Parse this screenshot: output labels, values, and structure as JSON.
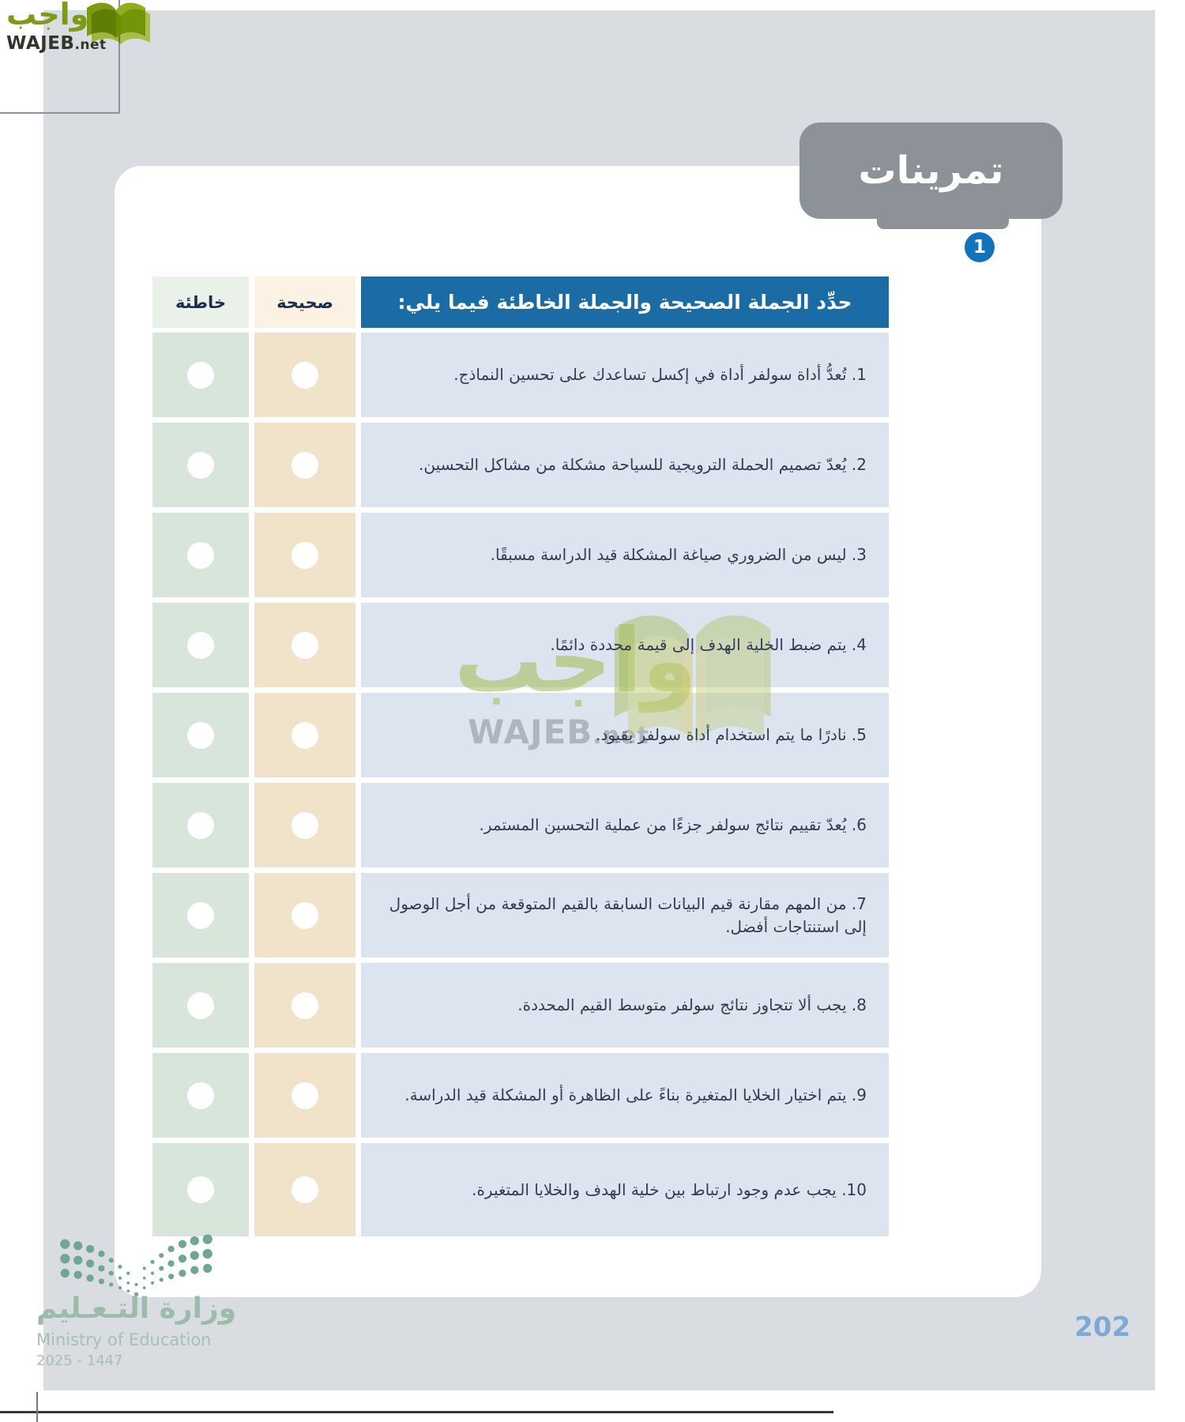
{
  "wajeb_logo": {
    "arabic": "واجب",
    "latin": "WAJEB",
    "tld": ".net"
  },
  "watermark": {
    "arabic": "واجب",
    "latin": "WAJEB",
    "tld": ".net"
  },
  "exercises_header": {
    "title": "تمرينات",
    "badge": "1"
  },
  "table": {
    "header": {
      "statement": "حدِّد الجملة الصحيحة والجملة الخاطئة فيما يلي:",
      "correct": "صحيحة",
      "wrong": "خاطئة"
    },
    "rows": [
      {
        "num": "1",
        "text": "تُعدُّ أداة سولفر أداة في إكسل تساعدك على تحسين النماذج."
      },
      {
        "num": "2",
        "text": "يُعدّ تصميم الحملة الترويجية للسياحة مشكلة من مشاكل التحسين."
      },
      {
        "num": "3",
        "text": "ليس من الضروري صياغة المشكلة قيد الدراسة مسبقًا."
      },
      {
        "num": "4",
        "text": "يتم ضبط الخلية الهدف إلى قيمة محددة دائمًا."
      },
      {
        "num": "5",
        "text": "نادرًا ما يتم استخدام أداة سولفر بقيود."
      },
      {
        "num": "6",
        "text": "يُعدّ تقييم نتائج سولفر جزءًا من عملية التحسين المستمر."
      },
      {
        "num": "7",
        "text": "من المهم مقارنة قيم البيانات السابقة بالقيم المتوقعة من أجل الوصول إلى استنتاجات أفضل."
      },
      {
        "num": "8",
        "text": "يجب ألا تتجاوز نتائج سولفر متوسط القيم المحددة."
      },
      {
        "num": "9",
        "text": "يتم اختيار الخلايا المتغيرة بناءً على الظاهرة أو المشكلة قيد الدراسة."
      },
      {
        "num": "10",
        "text": "يجب عدم وجود ارتباط بين خلية الهدف والخلايا المتغيرة."
      }
    ]
  },
  "footer": {
    "ministry_ar": "وزارة التـعـليم",
    "ministry_en": "Ministry of Education",
    "years": "2025 - 1447",
    "page_number": "202"
  },
  "colors": {
    "page_gray": "#d9dce1",
    "header_blue": "#1b6ba5",
    "statement_cell": "#dce4ef",
    "correct_cell": "#f1e3c9",
    "wrong_cell": "#d8e5db",
    "exercises_box_gray": "#8d9198",
    "badge_blue": "#1373ba",
    "wajeb_green": "#7d9b18",
    "ministry_sage": "#9cbcab",
    "page_number_blue": "#7da9d6"
  }
}
